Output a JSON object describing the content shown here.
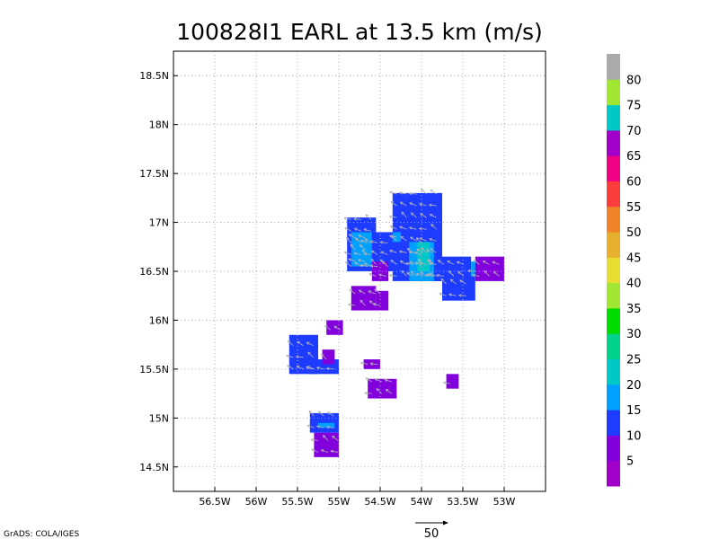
{
  "chart_data": {
    "type": "heatmap",
    "title": "100828I1 EARL at 13.5 km (m/s)",
    "xlim": [
      -57,
      -52.5
    ],
    "ylim": [
      14.25,
      18.75
    ],
    "grid": true,
    "x_tick_values": [
      -56.5,
      -56,
      -55.5,
      -55,
      -54.5,
      -54,
      -53.5,
      -53
    ],
    "x_tick_labels": [
      "56.5W",
      "56W",
      "55.5W",
      "55W",
      "54.5W",
      "54W",
      "53.5W",
      "53W"
    ],
    "y_tick_values": [
      14.5,
      15,
      15.5,
      16,
      16.5,
      17,
      17.5,
      18,
      18.5
    ],
    "y_tick_labels": [
      "14.5N",
      "15N",
      "15.5N",
      "16N",
      "16.5N",
      "17N",
      "17.5N",
      "18N",
      "18.5N"
    ],
    "colorbar": {
      "levels": [
        5,
        10,
        15,
        20,
        25,
        30,
        35,
        40,
        45,
        50,
        55,
        60,
        65,
        70,
        75,
        80
      ],
      "labels": [
        "5",
        "10",
        "15",
        "20",
        "25",
        "30",
        "35",
        "40",
        "45",
        "50",
        "55",
        "60",
        "65",
        "70",
        "75",
        "80"
      ],
      "colors": [
        "#a000c8",
        "#8200dc",
        "#1e3cff",
        "#00a0ff",
        "#00c8c8",
        "#00d28c",
        "#00dc00",
        "#a0e632",
        "#e6dc32",
        "#e6af2d",
        "#f08228",
        "#fa3c3c",
        "#f00082",
        "#a000c8",
        "#00c8c8",
        "#a0e632",
        "#aaaaaa"
      ]
    },
    "regions": [
      {
        "lon": [
          -54.35,
          -53.75
        ],
        "lat": [
          16.4,
          17.3
        ],
        "value": 12
      },
      {
        "lon": [
          -54.7,
          -54.3
        ],
        "lat": [
          16.5,
          16.9
        ],
        "value": 12
      },
      {
        "lon": [
          -54.9,
          -54.55
        ],
        "lat": [
          16.5,
          17.05
        ],
        "value": 12
      },
      {
        "lon": [
          -54.85,
          -54.6
        ],
        "lat": [
          16.55,
          16.9
        ],
        "value": 18
      },
      {
        "lon": [
          -53.9,
          -53.4
        ],
        "lat": [
          16.4,
          16.65
        ],
        "value": 12
      },
      {
        "lon": [
          -53.75,
          -53.35
        ],
        "lat": [
          16.2,
          16.45
        ],
        "value": 12
      },
      {
        "lon": [
          -53.4,
          -53.3
        ],
        "lat": [
          16.45,
          16.6
        ],
        "value": 18
      },
      {
        "lon": [
          -54.15,
          -53.85
        ],
        "lat": [
          16.4,
          16.8
        ],
        "value": 18
      },
      {
        "lon": [
          -54.05,
          -53.9
        ],
        "lat": [
          16.5,
          16.8
        ],
        "value": 22
      },
      {
        "lon": [
          -54.35,
          -54.25
        ],
        "lat": [
          16.8,
          16.9
        ],
        "value": 18
      },
      {
        "lon": [
          -53.35,
          -53.0
        ],
        "lat": [
          16.4,
          16.65
        ],
        "value": 8
      },
      {
        "lon": [
          -54.6,
          -54.4
        ],
        "lat": [
          16.4,
          16.6
        ],
        "value": 8
      },
      {
        "lon": [
          -54.85,
          -54.55
        ],
        "lat": [
          16.1,
          16.35
        ],
        "value": 8
      },
      {
        "lon": [
          -54.55,
          -54.4
        ],
        "lat": [
          16.1,
          16.3
        ],
        "value": 8
      },
      {
        "lon": [
          -55.15,
          -54.95
        ],
        "lat": [
          15.85,
          16.0
        ],
        "value": 8
      },
      {
        "lon": [
          -55.6,
          -55.25
        ],
        "lat": [
          15.45,
          15.85
        ],
        "value": 12
      },
      {
        "lon": [
          -55.35,
          -55.0
        ],
        "lat": [
          15.45,
          15.6
        ],
        "value": 12
      },
      {
        "lon": [
          -55.2,
          -55.05
        ],
        "lat": [
          15.55,
          15.7
        ],
        "value": 8
      },
      {
        "lon": [
          -54.7,
          -54.5
        ],
        "lat": [
          15.5,
          15.6
        ],
        "value": 8
      },
      {
        "lon": [
          -54.65,
          -54.3
        ],
        "lat": [
          15.2,
          15.4
        ],
        "value": 8
      },
      {
        "lon": [
          -53.7,
          -53.55
        ],
        "lat": [
          15.3,
          15.45
        ],
        "value": 8
      },
      {
        "lon": [
          -55.35,
          -55.0
        ],
        "lat": [
          14.85,
          15.05
        ],
        "value": 12
      },
      {
        "lon": [
          -55.25,
          -55.05
        ],
        "lat": [
          14.9,
          14.95
        ],
        "value": 18
      },
      {
        "lon": [
          -55.3,
          -55.0
        ],
        "lat": [
          14.6,
          14.85
        ],
        "value": 8
      }
    ],
    "reference_vector": {
      "value": 50,
      "label": "50"
    }
  },
  "credit": "GrADS: COLA/IGES"
}
